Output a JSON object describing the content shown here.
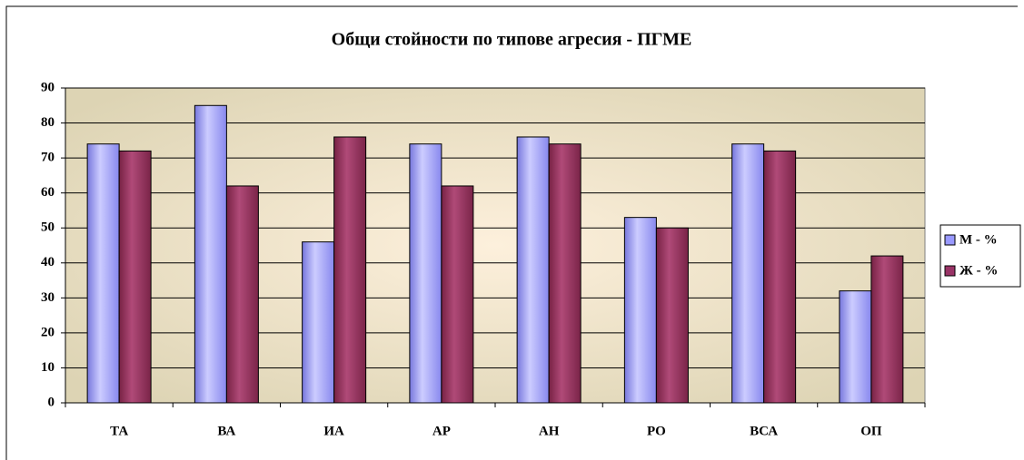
{
  "chart_data": {
    "type": "bar",
    "title": "Общи стойности по типове агресия - ПГМЕ",
    "categories": [
      "ТА",
      "ВА",
      "ИА",
      "АР",
      "АН",
      "РО",
      "ВСА",
      "ОП"
    ],
    "series": [
      {
        "name": "М - %",
        "color": "#9999ff",
        "values": [
          74,
          85,
          46,
          74,
          76,
          53,
          74,
          32
        ]
      },
      {
        "name": "Ж - %",
        "color": "#993366",
        "values": [
          72,
          62,
          76,
          62,
          74,
          50,
          72,
          42
        ]
      }
    ],
    "ylim": [
      0,
      90
    ],
    "yticks": [
      0,
      10,
      20,
      30,
      40,
      50,
      60,
      70,
      80,
      90
    ],
    "grid": true,
    "legend": "right"
  }
}
